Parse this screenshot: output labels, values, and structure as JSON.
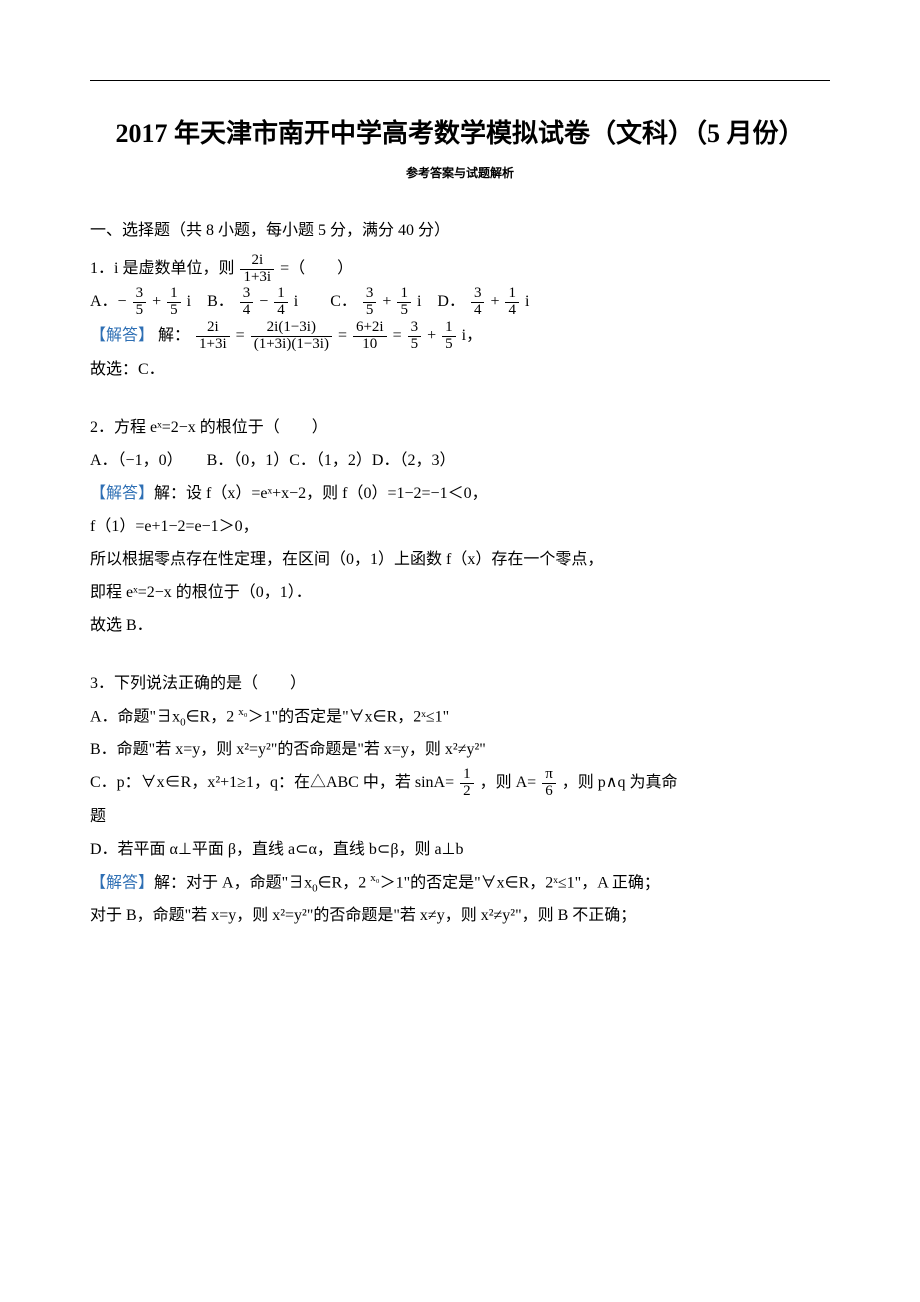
{
  "colors": {
    "text": "#000000",
    "accent": "#2e6fb4",
    "background": "#ffffff",
    "rule": "#000000"
  },
  "typography": {
    "body_family": "SimSun",
    "math_family": "Times New Roman",
    "title_fontsize_pt": 20,
    "subtitle_fontsize_pt": 9,
    "body_fontsize_pt": 12,
    "line_height": 2.0
  },
  "title": "2017 年天津市南开中学高考数学模拟试卷（文科）（5 月份）",
  "subtitle": "参考答案与试题解析",
  "section1_head": "一、选择题（共 8 小题，每小题 5 分，满分 40 分）",
  "q1": {
    "stem_pre": "1．i 是虚数单位，则",
    "stem_frac_num": "2i",
    "stem_frac_den": "1+3i",
    "stem_post": "=（　　）",
    "optA_pre": "A．−",
    "optA_f1n": "3",
    "optA_f1d": "5",
    "optA_mid": "+",
    "optA_f2n": "1",
    "optA_f2d": "5",
    "optA_post": "i　B．",
    "optB_f1n": "3",
    "optB_f1d": "4",
    "optB_mid": "−",
    "optB_f2n": "1",
    "optB_f2d": "4",
    "optB_post": "i　　C．",
    "optC_f1n": "3",
    "optC_f1d": "5",
    "optC_mid": " +",
    "optC_f2n": "1",
    "optC_f2d": "5",
    "optC_post": "i　D．",
    "optD_f1n": "3",
    "optD_f1d": "4",
    "optD_mid": " +",
    "optD_f2n": "1",
    "optD_f2d": "4",
    "optD_post": "i",
    "sol_label": "【解答】",
    "sol_pre": "解：",
    "sol_f1n": "2i",
    "sol_f1d": "1+3i",
    "sol_eq1": " =",
    "sol_f2n": "2i(1−3i)",
    "sol_f2d": "(1+3i)(1−3i)",
    "sol_eq2": "=",
    "sol_f3n": "6+2i",
    "sol_f3d": "10",
    "sol_eq3": "=",
    "sol_f4n": "3",
    "sol_f4d": "5",
    "sol_plus": "+",
    "sol_f5n": "1",
    "sol_f5d": "5",
    "sol_post": "i，",
    "ans": "故选：C．"
  },
  "q2": {
    "stem": "2．方程 eˣ=2−x 的根位于（　　）",
    "opts": "A．（−1，0）　　B．（0，1）C．（1，2）D．（2，3）",
    "sol_label": "【解答】",
    "sol_l1": "解：设 f（x）=eˣ+x−2，则 f（0）=1−2=−1＜0，",
    "sol_l2": "f（1）=e+1−2=e−1＞0，",
    "sol_l3": "所以根据零点存在性定理，在区间（0，1）上函数 f（x）存在一个零点，",
    "sol_l4": "即程 eˣ=2−x 的根位于（0，1）．",
    "ans": "故选 B．"
  },
  "q3": {
    "stem": "3．下列说法正确的是（　　）",
    "optA_pre": "A．命题\"∃x",
    "optA_sub0": "0",
    "optA_mid1": "∈R，2 ",
    "optA_supx0": "x₀",
    "optA_post": "＞1\"的否定是\"∀x∈R，2ˣ≤1\"",
    "optB": "B．命题\"若 x=y，则 x²=y²\"的否命题是\"若 x=y，则 x²≠y²\"",
    "optC_pre": "C．p：∀x∈R，x²+1≥1，q：在△ABC 中，若 sinA=",
    "optC_f1n": "1",
    "optC_f1d": "2",
    "optC_mid": "，则 A=",
    "optC_f2n": "π",
    "optC_f2d": "6",
    "optC_post": "，则 p∧q 为真命",
    "optC_l2": "题",
    "optD": "D．若平面 α⊥平面 β，直线 a⊂α，直线 b⊂β，则 a⊥b",
    "sol_label": "【解答】",
    "sol_l1_pre": "解：对于 A，命题\"∃x",
    "sol_sub0a": "0",
    "sol_l1_mid": "∈R，2 ",
    "sol_supx0a": "x₀",
    "sol_l1_post": "＞1\"的否定是\"∀x∈R，2ˣ≤1\"，A 正确；",
    "sol_l2_pre": "对于 B，命题\"若 x=y，则 x²=y²\"的否命题是\"若 x",
    "sol_l2_neqpart": "≠y，则 x²≠y²\"，则 B 不正确；"
  }
}
